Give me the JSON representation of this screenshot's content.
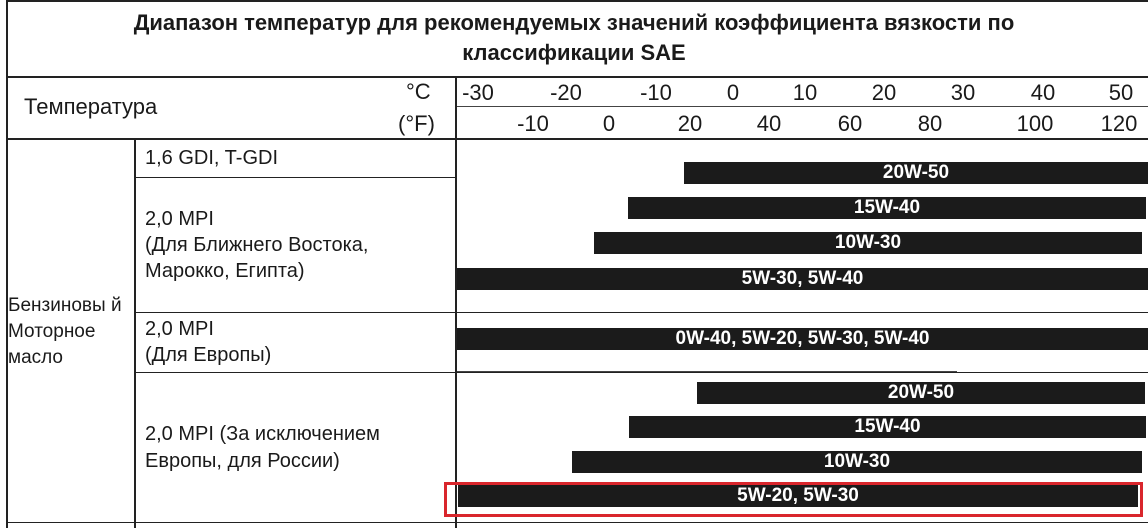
{
  "title_line1": "Диапазон температур для рекомендуемых значений коэффициента вязкости по",
  "title_line2": "классификации SAE",
  "header": {
    "temperature_label": "Температура",
    "celsius_unit": "°C",
    "fahrenheit_unit": "(°F)",
    "celsius_ticks": [
      "-30",
      "-20",
      "-10",
      "0",
      "10",
      "20",
      "30",
      "40",
      "50"
    ],
    "fahrenheit_ticks": [
      "-10",
      "0",
      "20",
      "40",
      "60",
      "80",
      "100",
      "120"
    ]
  },
  "category": {
    "line1": "Бензиновы й",
    "line2": "Моторное",
    "line3": "масло"
  },
  "engines": [
    {
      "lines": [
        "1,6 GDI, T-GDI"
      ]
    },
    {
      "lines": [
        "2,0 MPI",
        "(Для Ближнего Востока,",
        "Марокко, Египта)"
      ]
    },
    {
      "lines": [
        "2,0 MPI",
        "(Для Европы)"
      ]
    },
    {
      "lines": [
        "2,0 MPI (За исключением",
        "Европы, для России)"
      ]
    }
  ],
  "bars": [
    {
      "label": "20W-50"
    },
    {
      "label": "15W-40"
    },
    {
      "label": "10W-30"
    },
    {
      "label": "5W-30, 5W-40"
    },
    {
      "label": "0W-40, 5W-20, 5W-30, 5W-40"
    },
    {
      "label": "20W-50"
    },
    {
      "label": "15W-40"
    },
    {
      "label": "10W-30"
    },
    {
      "label": "5W-20, 5W-30"
    }
  ],
  "highlight_color": "#d9262c"
}
